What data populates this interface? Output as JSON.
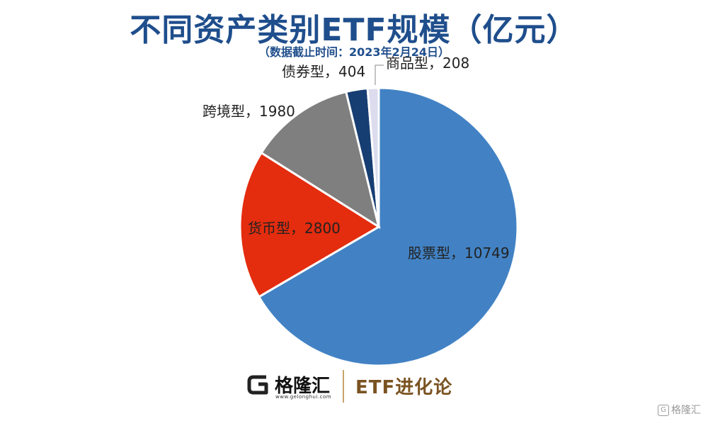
{
  "chart_data": {
    "type": "pie",
    "title": "不同资产类别ETF规模（亿元）",
    "subtitle": "（数据截止时间：2023年2月24日）",
    "slices": [
      {
        "label": "股票型",
        "value": 10749,
        "color": "#4282c4",
        "label_text": "股票型，10749"
      },
      {
        "label": "货币型",
        "value": 2800,
        "color": "#e42c0e",
        "label_text": "货币型，2800"
      },
      {
        "label": "跨境型",
        "value": 1980,
        "color": "#7f7f7f",
        "label_text": "跨境型，1980"
      },
      {
        "label": "债券型",
        "value": 404,
        "color": "#173e73",
        "label_text": "债券型，404"
      },
      {
        "label": "商品型",
        "value": 208,
        "color": "#dcdcee",
        "label_text": "商品型，208"
      }
    ]
  },
  "footer": {
    "brand_name": "格隆汇",
    "brand_url": "www.gelonghui.com",
    "tagline": "ETF进化论"
  },
  "watermark": {
    "text": "格隆汇"
  }
}
